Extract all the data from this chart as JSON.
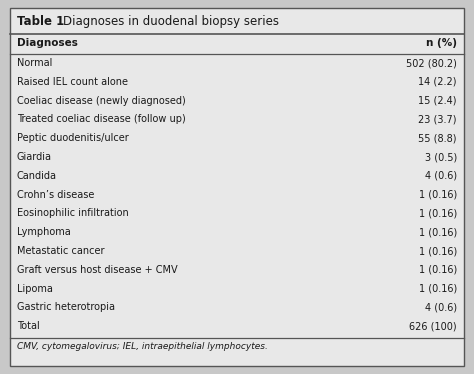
{
  "title_bold": "Table 1",
  "title_rest": "Diagnoses in duodenal biopsy series",
  "col1_header": "Diagnoses",
  "col2_header": "n (%)",
  "rows": [
    [
      "Normal",
      "502 (80.2)"
    ],
    [
      "Raised IEL count alone",
      "14 (2.2)"
    ],
    [
      "Coeliac disease (newly diagnosed)",
      "15 (2.4)"
    ],
    [
      "Treated coeliac disease (follow up)",
      "23 (3.7)"
    ],
    [
      "Peptic duodenitis/ulcer",
      "55 (8.8)"
    ],
    [
      "Giardia",
      "3 (0.5)"
    ],
    [
      "Candida",
      "4 (0.6)"
    ],
    [
      "Crohn’s disease",
      "1 (0.16)"
    ],
    [
      "Eosinophilic infiltration",
      "1 (0.16)"
    ],
    [
      "Lymphoma",
      "1 (0.16)"
    ],
    [
      "Metastatic cancer",
      "1 (0.16)"
    ],
    [
      "Graft versus host disease + CMV",
      "1 (0.16)"
    ],
    [
      "Lipoma",
      "1 (0.16)"
    ],
    [
      "Gastric heterotropia",
      "4 (0.6)"
    ],
    [
      "Total",
      "626 (100)"
    ]
  ],
  "footnote": "CMV, cytomegalovirus; IEL, intraepithelial lymphocytes.",
  "outer_bg": "#c8c8c8",
  "inner_bg": "#e8e8e8",
  "text_color": "#1a1a1a",
  "line_color": "#555555",
  "title_bold_fontsize": 8.5,
  "title_rest_fontsize": 8.5,
  "header_fontsize": 7.5,
  "body_fontsize": 7.0,
  "footnote_fontsize": 6.5
}
